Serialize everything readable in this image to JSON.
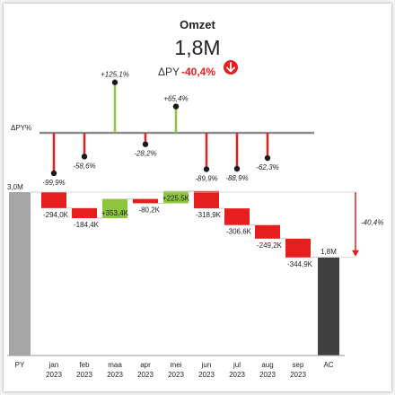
{
  "kpi": {
    "title": "Omzet",
    "value": "1,8M",
    "delta_label": "ΔPY",
    "delta_value": "-40,4%",
    "delta_icon": "arrow-down-circle-icon"
  },
  "colors": {
    "positive": "#8cc43f",
    "negative": "#e61e1e",
    "py_bar": "#a6a6a6",
    "ac_bar": "#404040",
    "axis": "#8c8c8c",
    "text": "#222222"
  },
  "chart_data": [
    {
      "type": "lollipop",
      "title": "",
      "axis_label": "ΔPY%",
      "categories": [
        "jan 2023",
        "feb 2023",
        "maa 2023",
        "apr 2023",
        "mei 2023",
        "jun 2023",
        "jul 2023",
        "aug 2023",
        "sep 2023"
      ],
      "values": [
        -99.9,
        -58.6,
        125.1,
        -28.2,
        65.4,
        -89.9,
        -88.9,
        -62.3,
        null
      ],
      "labels": [
        "-99,9%",
        "-58,6%",
        "+125,1%",
        "-28,2%",
        "+65,4%",
        "-89,9%",
        "-88,9%",
        "-62,3%",
        ""
      ]
    },
    {
      "type": "bar",
      "subtype": "waterfall",
      "title": "",
      "categories": [
        {
          "month": "PY",
          "year": ""
        },
        {
          "month": "jan",
          "year": "2023"
        },
        {
          "month": "feb",
          "year": "2023"
        },
        {
          "month": "maa",
          "year": "2023"
        },
        {
          "month": "apr",
          "year": "2023"
        },
        {
          "month": "mei",
          "year": "2023"
        },
        {
          "month": "jun",
          "year": "2023"
        },
        {
          "month": "jul",
          "year": "2023"
        },
        {
          "month": "aug",
          "year": "2023"
        },
        {
          "month": "sep",
          "year": "2023"
        },
        {
          "month": "AC",
          "year": ""
        }
      ],
      "start": {
        "value": 3.0,
        "label": "3,0M"
      },
      "deltas": [
        {
          "value": -294.0,
          "label": "-294,0K"
        },
        {
          "value": -184.4,
          "label": "-184,4K"
        },
        {
          "value": 353.4,
          "label": "+353,4K"
        },
        {
          "value": -80.2,
          "label": "-80,2K"
        },
        {
          "value": 225.5,
          "label": "+225,5K"
        },
        {
          "value": -318.9,
          "label": "-318,9K"
        },
        {
          "value": -306.6,
          "label": "-306,6K"
        },
        {
          "value": -249.2,
          "label": "-249,2K"
        },
        {
          "value": -344.9,
          "label": "-344,9K"
        }
      ],
      "end": {
        "value": 1.8,
        "label": "1,8M"
      },
      "total_delta_label": "-40,4%",
      "units": {
        "totals": "M",
        "deltas": "K"
      }
    }
  ]
}
